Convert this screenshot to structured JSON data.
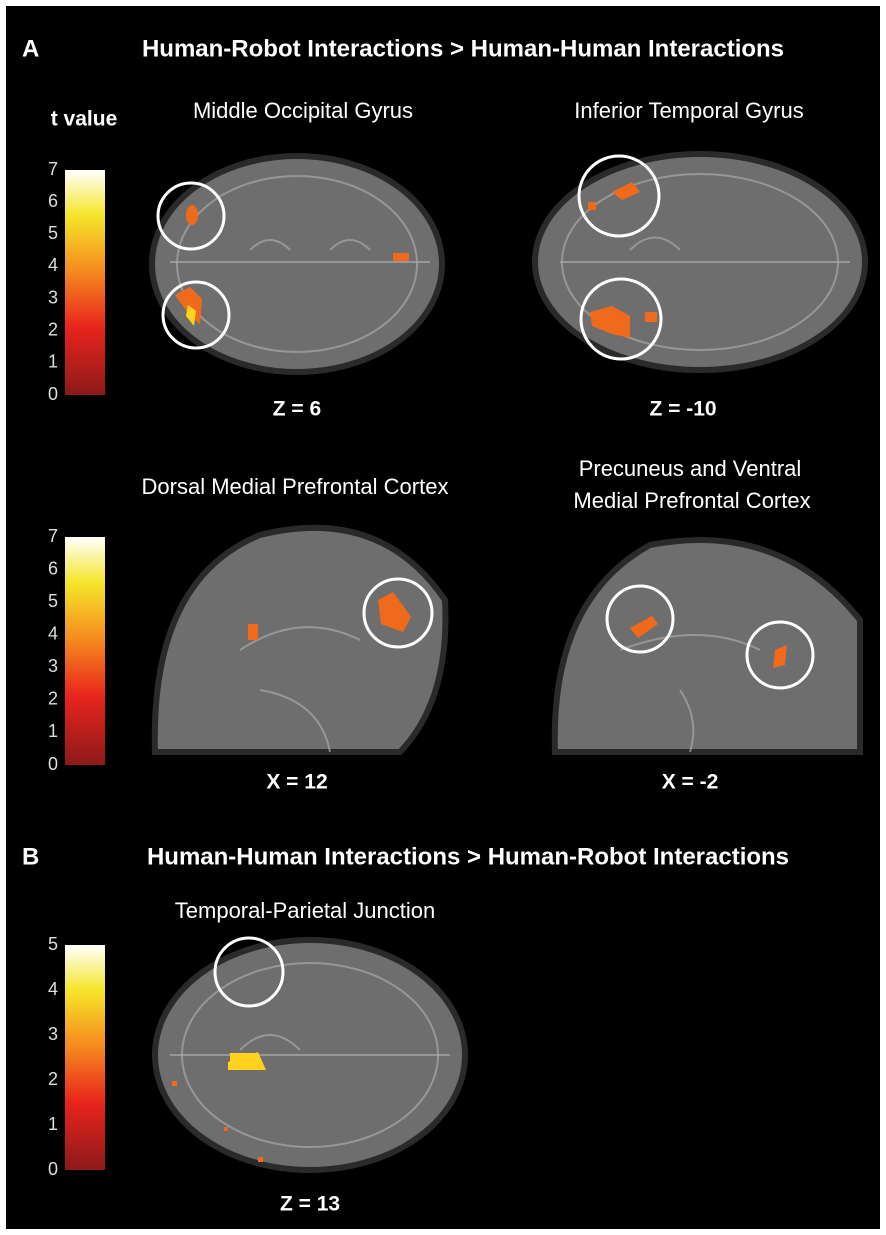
{
  "panels": [
    {
      "letter": "A",
      "title": "Human-Robot Interactions > Human-Human Interactions",
      "colorbar_title": "t value",
      "colorbars": [
        {
          "ticks": [
            0,
            1,
            2,
            3,
            4,
            5,
            6,
            7
          ]
        },
        {
          "ticks": [
            0,
            1,
            2,
            3,
            4,
            5,
            6,
            7
          ]
        }
      ],
      "images": [
        {
          "title_lines": [
            "Middle Occipital Gyrus"
          ],
          "coordinate": "Z = 6"
        },
        {
          "title_lines": [
            "Inferior Temporal Gyrus"
          ],
          "coordinate": "Z = -10"
        },
        {
          "title_lines": [
            "Dorsal Medial Prefrontal Cortex"
          ],
          "coordinate": "X = 12"
        },
        {
          "title_lines": [
            "Precuneus and Ventral",
            "Medial Prefrontal Cortex"
          ],
          "coordinate": "X = -2"
        }
      ]
    },
    {
      "letter": "B",
      "title": "Human-Human Interactions > Human-Robot Interactions",
      "colorbars": [
        {
          "ticks": [
            0,
            1,
            2,
            3,
            4,
            5
          ]
        }
      ],
      "images": [
        {
          "title_lines": [
            "Temporal-Parietal Junction"
          ],
          "coordinate": "Z = 13"
        }
      ]
    }
  ]
}
